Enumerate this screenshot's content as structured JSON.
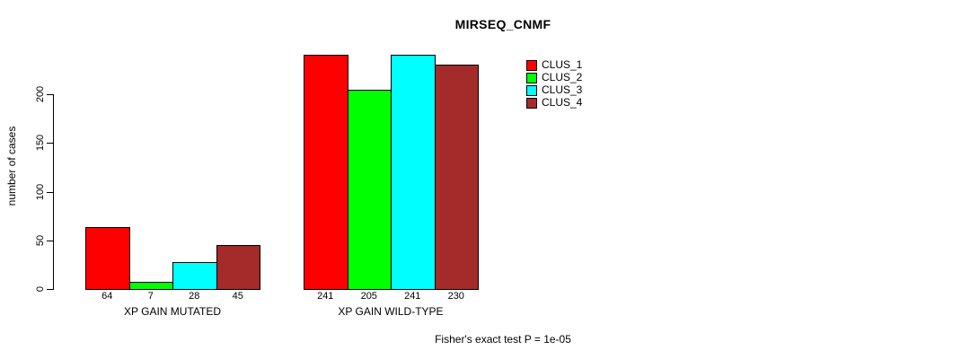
{
  "chart_data": {
    "type": "bar",
    "title": "MIRSEQ_CNMF",
    "ylabel": "number of cases",
    "xlabel": "",
    "categories": [
      "XP GAIN MUTATED",
      "XP GAIN WILD-TYPE"
    ],
    "series": [
      {
        "name": "CLUS_1",
        "color": "#FF0000",
        "values": [
          64,
          241
        ]
      },
      {
        "name": "CLUS_2",
        "color": "#00FF00",
        "values": [
          7,
          205
        ]
      },
      {
        "name": "CLUS_3",
        "color": "#00FFFF",
        "values": [
          28,
          241
        ]
      },
      {
        "name": "CLUS_4",
        "color": "#A52A2A",
        "values": [
          45,
          230
        ]
      }
    ],
    "yticks": [
      0,
      50,
      100,
      150,
      200
    ],
    "ylim": [
      0,
      245
    ],
    "grid": false,
    "bar_value_labels": true,
    "legend_position": "top-right",
    "annotation": "Fisher's exact test P = 1e-05"
  },
  "legend": {
    "entries": [
      {
        "label": "CLUS_1",
        "color": "#FF0000"
      },
      {
        "label": "CLUS_2",
        "color": "#00FF00"
      },
      {
        "label": "CLUS_3",
        "color": "#00FFFF"
      },
      {
        "label": "CLUS_4",
        "color": "#A52A2A"
      }
    ]
  }
}
